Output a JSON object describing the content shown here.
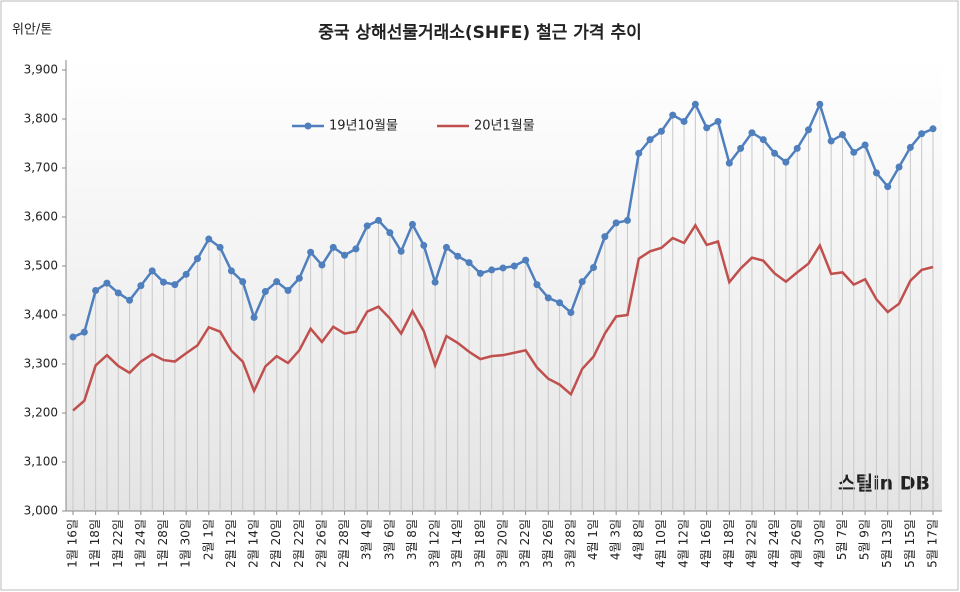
{
  "chart_data": {
    "type": "line",
    "title": "중국 상해선물거래소(SHFE)  철근 가격 추이",
    "y_label": "위안/톤",
    "watermark": "스틸in DB",
    "categories": [
      "1월 16일",
      null,
      "1월 18일",
      null,
      "1월 22일",
      null,
      "1월 24일",
      null,
      "1월 28일",
      null,
      "1월 30일",
      null,
      "2월 1일",
      null,
      "2월 12일",
      null,
      "2월 14일",
      null,
      "2월 20일",
      null,
      "2월 22일",
      null,
      "2월 26일",
      null,
      "2월 28일",
      null,
      "3월 4일",
      null,
      "3월 6일",
      null,
      "3월 8일",
      null,
      "3월 12일",
      null,
      "3월 14일",
      null,
      "3월 18일",
      null,
      "3월 20일",
      null,
      "3월 22일",
      null,
      "3월 26일",
      null,
      "3월 28일",
      null,
      "4월 1일",
      null,
      "4월 3일",
      null,
      "4월 8일",
      null,
      "4월 10일",
      null,
      "4월 12일",
      null,
      "4월 16일",
      null,
      "4월 18일",
      null,
      "4월 22일",
      null,
      "4월 24일",
      null,
      "4월 26일",
      null,
      "4월 30일",
      null,
      "5월 7일",
      null,
      "5월 9일",
      null,
      "5월 13일",
      null,
      "5월 15일",
      null,
      "5월 17일"
    ],
    "series": [
      {
        "name": "19년10월물",
        "color": "#4f7fbd",
        "values": [
          3355,
          3365,
          3450,
          3465,
          3445,
          3430,
          3460,
          3490,
          3467,
          3462,
          3483,
          3515,
          3555,
          3538,
          3490,
          3468,
          3395,
          3448,
          3468,
          3450,
          3475,
          3528,
          3502,
          3538,
          3522,
          3535,
          3582,
          3593,
          3568,
          3530,
          3585,
          3542,
          3467,
          3538,
          3520,
          3507,
          3485,
          3492,
          3496,
          3500,
          3512,
          3462,
          3435,
          3425,
          3405,
          3468,
          3497,
          3560,
          3588,
          3593,
          3730,
          3758,
          3775,
          3808,
          3795,
          3830,
          3782,
          3795,
          3710,
          3740,
          3772,
          3758,
          3730,
          3712,
          3740,
          3778,
          3830,
          3755,
          3768,
          3732,
          3747,
          3690,
          3662,
          3702,
          3742,
          3770,
          3780
        ]
      },
      {
        "name": "20년1월물",
        "color": "#c0504d",
        "values": [
          3205,
          3225,
          3297,
          3318,
          3296,
          3282,
          3305,
          3320,
          3308,
          3305,
          3322,
          3338,
          3375,
          3366,
          3327,
          3305,
          3245,
          3295,
          3316,
          3302,
          3328,
          3372,
          3345,
          3376,
          3362,
          3366,
          3407,
          3417,
          3393,
          3362,
          3408,
          3367,
          3297,
          3357,
          3343,
          3325,
          3310,
          3316,
          3318,
          3323,
          3328,
          3293,
          3270,
          3258,
          3238,
          3290,
          3315,
          3362,
          3397,
          3400,
          3515,
          3530,
          3537,
          3557,
          3547,
          3583,
          3543,
          3550,
          3467,
          3495,
          3517,
          3511,
          3485,
          3468,
          3487,
          3505,
          3542,
          3484,
          3487,
          3462,
          3473,
          3432,
          3406,
          3423,
          3470,
          3492,
          3498
        ]
      }
    ],
    "ylim": [
      3000,
      3900
    ],
    "yticks": [
      {
        "value": 3000,
        "label": "3,000"
      },
      {
        "value": 3100,
        "label": "3,100"
      },
      {
        "value": 3200,
        "label": "3,200"
      },
      {
        "value": 3300,
        "label": "3,300"
      },
      {
        "value": 3400,
        "label": "3,400"
      },
      {
        "value": 3500,
        "label": "3,500"
      },
      {
        "value": 3600,
        "label": "3,600"
      },
      {
        "value": 3700,
        "label": "3,700"
      },
      {
        "value": 3800,
        "label": "3,800"
      },
      {
        "value": 3900,
        "label": "3,900"
      }
    ],
    "legend": "top"
  }
}
